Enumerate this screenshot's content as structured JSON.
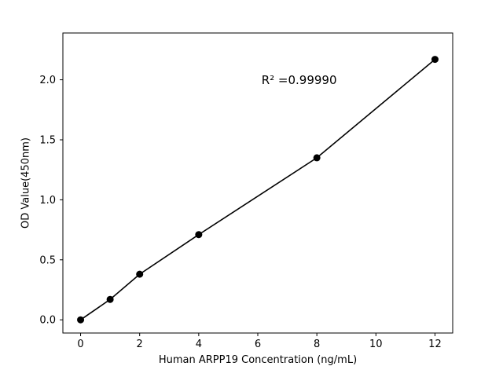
{
  "chart_data": {
    "type": "scatter",
    "title": "",
    "xlabel": "Human ARPP19 Concentration (ng/mL)",
    "ylabel": "OD Value(450nm)",
    "annotation": "R² =0.99990",
    "annotation_pos": {
      "x": 7.4,
      "y": 2.0
    },
    "x": [
      0,
      1,
      2,
      4,
      8,
      12
    ],
    "y": [
      0.0,
      0.17,
      0.38,
      0.71,
      1.35,
      2.17
    ],
    "xlim": [
      -0.6,
      12.6
    ],
    "ylim": [
      -0.11,
      2.39
    ],
    "xticks": [
      0,
      2,
      4,
      6,
      8,
      10,
      12
    ],
    "yticks": [
      0.0,
      0.5,
      1.0,
      1.5,
      2.0
    ],
    "grid": false,
    "line": true,
    "legend_position": "none",
    "line_color": "#000000",
    "marker_color": "#000000",
    "background_color": "#ffffff"
  }
}
